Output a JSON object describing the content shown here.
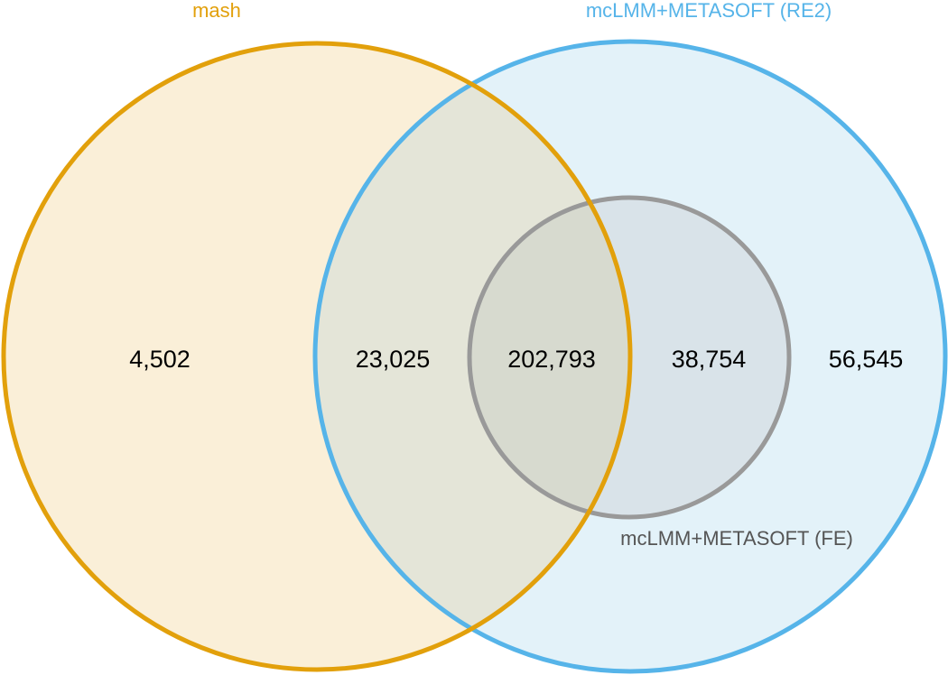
{
  "sets": {
    "mash": {
      "label": "mash",
      "color": "#e2a00b"
    },
    "re2": {
      "label": "mcLMM+METASOFT (RE2)",
      "color": "#56b4e9"
    },
    "fe": {
      "label": "mcLMM+METASOFT (FE)",
      "color": "#999999"
    }
  },
  "counts": {
    "mash_only": "4,502",
    "mash_and_re2_not_fe": "23,025",
    "all_three": "202,793",
    "re2_and_fe_not_mash": "38,754",
    "re2_only": "56,545"
  }
}
